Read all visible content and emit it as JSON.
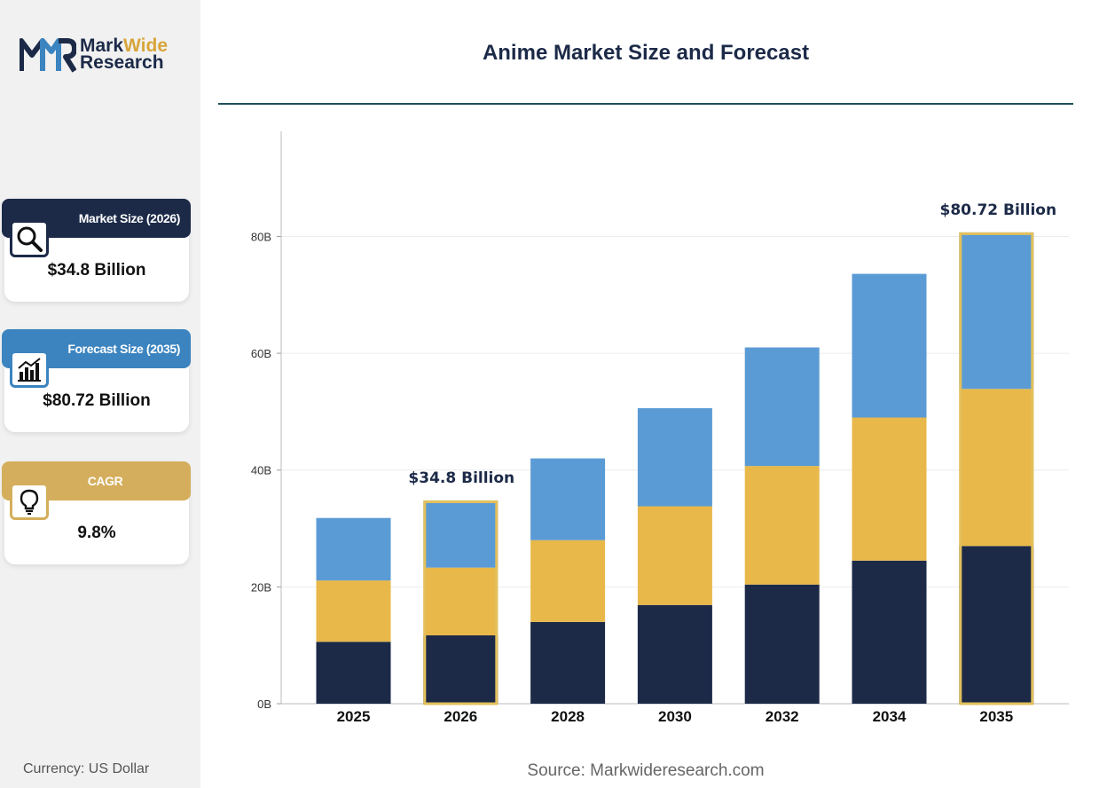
{
  "brand": {
    "name_part1": "Mark",
    "name_part2": "Wide",
    "name_line2": "Research"
  },
  "title": "Anime Market Size and Forecast",
  "cards": [
    {
      "label": "Market Size (2026)",
      "value": "$34.8 Billion",
      "icon": "magnifier-icon",
      "color": "#1c2a48"
    },
    {
      "label": "Forecast Size (2035)",
      "value": "$80.72 Billion",
      "icon": "bar-chart-icon",
      "color": "#3b84bf"
    },
    {
      "label": "CAGR",
      "value": "9.8%",
      "icon": "lightbulb-icon",
      "color": "#d4ae5c"
    }
  ],
  "currency": "Currency: US Dollar",
  "source": "Source: Markwideresearch.com",
  "colors": {
    "navy": "#1c2a48",
    "gold": "#e8b84a",
    "blue": "#5b9bd5",
    "highlight": "#e3c05c"
  },
  "chart_data": {
    "type": "bar",
    "stacked": true,
    "categories": [
      "2025",
      "2026",
      "2028",
      "2030",
      "2032",
      "2034",
      "2035"
    ],
    "series": [
      {
        "values": [
          10.6,
          11.7,
          14.0,
          16.9,
          20.4,
          24.5,
          27.0
        ],
        "color": "#1c2a48"
      },
      {
        "values": [
          10.5,
          11.6,
          14.0,
          16.9,
          20.3,
          24.5,
          26.9
        ],
        "color": "#e8b84a"
      },
      {
        "values": [
          10.7,
          11.5,
          14.0,
          16.8,
          20.3,
          24.6,
          26.8
        ],
        "color": "#5b9bd5"
      }
    ],
    "y_ticks": [
      "0B",
      "20B",
      "40B",
      "60B",
      "80B"
    ],
    "ylim": [
      0,
      98
    ],
    "grid": true,
    "highlighted": [
      "2026",
      "2035"
    ],
    "annotations": [
      {
        "category": "2026",
        "text": "$34.8 Billion"
      },
      {
        "category": "2035",
        "text": "$80.72 Billion"
      }
    ]
  }
}
